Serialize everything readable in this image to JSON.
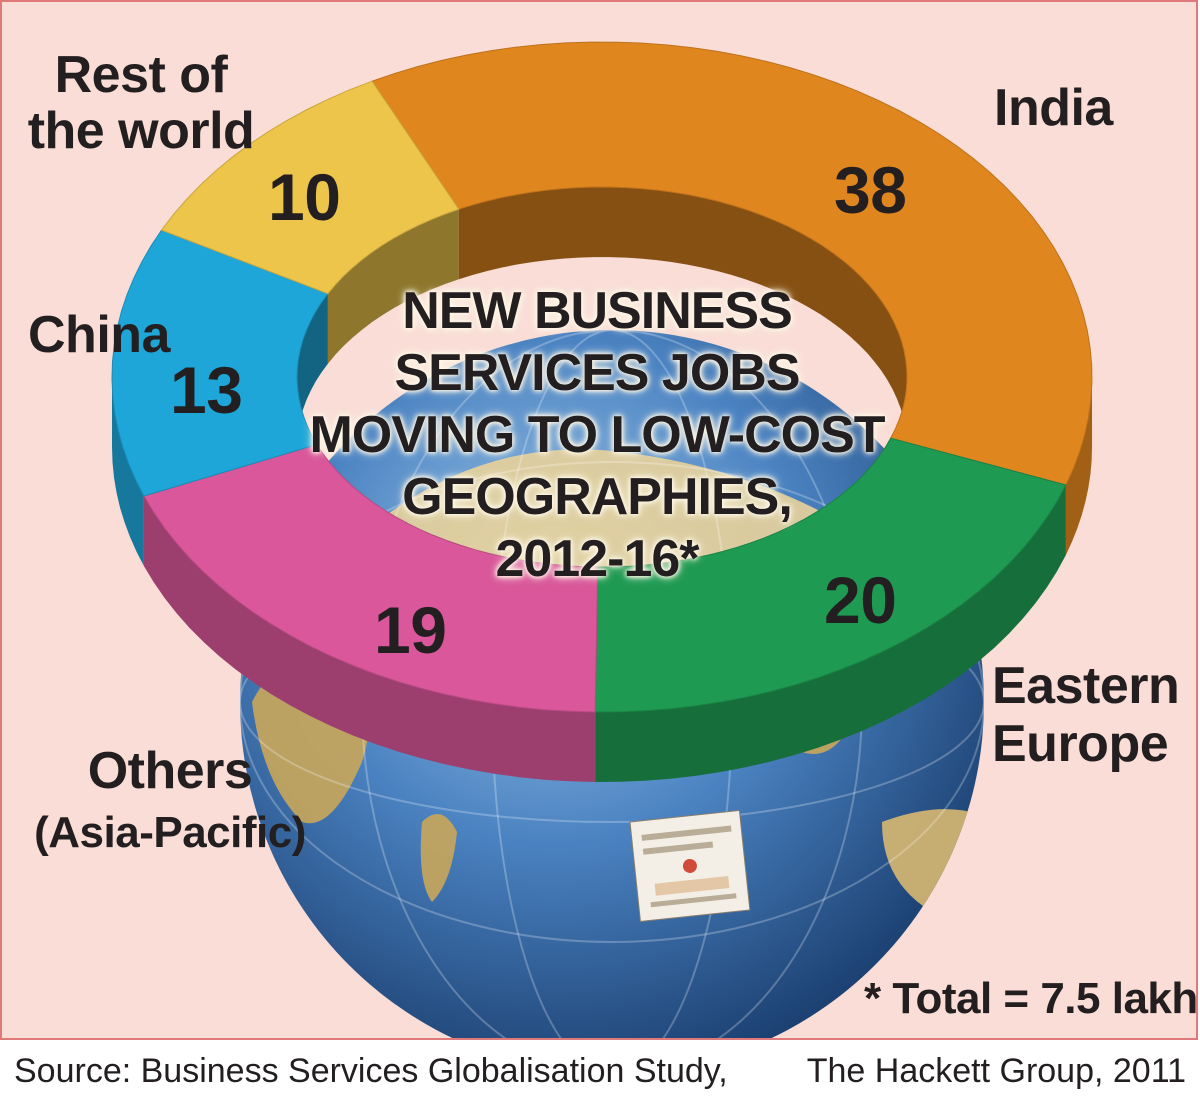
{
  "chart_data": {
    "type": "pie",
    "variant": "donut",
    "title_lines": [
      "NEW BUSINESS",
      "SERVICES JOBS",
      "MOVING TO LOW-COST",
      "GEOGRAPHIES,",
      "2012-16*"
    ],
    "categories": [
      {
        "label_lines": [
          "India"
        ],
        "value": 38,
        "color": "#e0861f"
      },
      {
        "label_lines": [
          "Eastern",
          "Europe"
        ],
        "value": 20,
        "color": "#1f9a52"
      },
      {
        "label_lines": [
          "Others",
          "(Asia-Pacific)"
        ],
        "value": 19,
        "color": "#d9579a"
      },
      {
        "label_lines": [
          "China"
        ],
        "value": 13,
        "color": "#1fa6d8"
      },
      {
        "label_lines": [
          "Rest of",
          "the world"
        ],
        "value": 10,
        "color": "#ecc54a"
      }
    ],
    "footnote": "* Total = 7.5 lakh"
  },
  "source": {
    "left": "Source: Business Services Globalisation Study,",
    "right": "The Hackett Group, 2011"
  },
  "colors": {
    "background": "#f9ddd6",
    "border": "#e07a7a",
    "globe_ocean": "#3a72b8",
    "globe_land": "#c9a65a"
  }
}
